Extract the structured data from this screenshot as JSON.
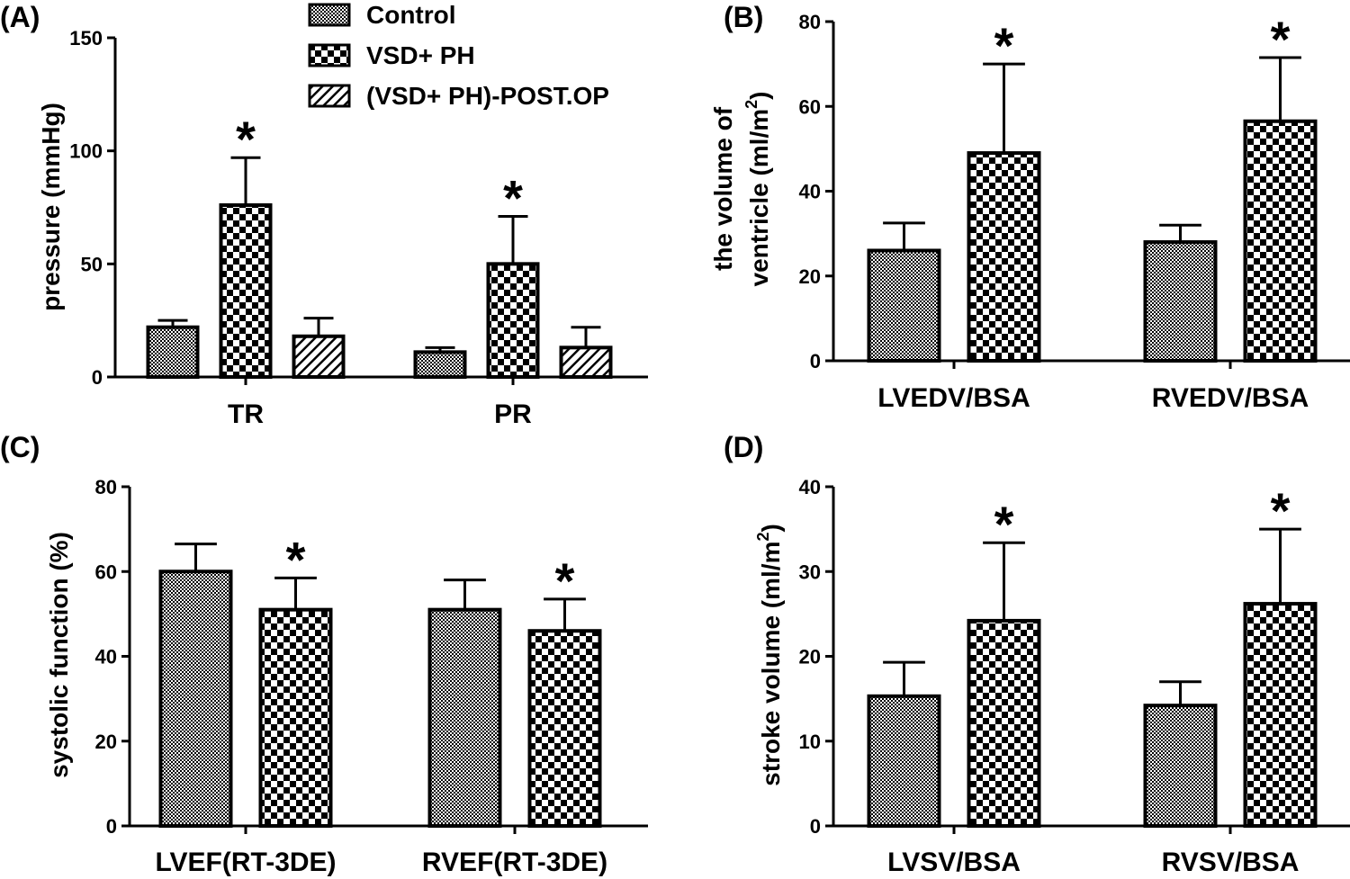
{
  "chart_data": [
    {
      "panel": "(A)",
      "type": "bar",
      "ylabel": "pressure (mmHg)",
      "ylim": [
        0,
        150
      ],
      "yticks": [
        0,
        50,
        100,
        150
      ],
      "categories": [
        "TR",
        "PR"
      ],
      "series": [
        {
          "name": "Control",
          "pattern": "control",
          "values": [
            22,
            11
          ],
          "errors": [
            3,
            2
          ]
        },
        {
          "name": "VSD+ PH",
          "pattern": "vsd",
          "values": [
            76,
            50
          ],
          "errors": [
            21,
            21
          ]
        },
        {
          "name": "(VSD+ PH)-POST.OP",
          "pattern": "post",
          "values": [
            18,
            13
          ],
          "errors": [
            8,
            9
          ]
        }
      ],
      "significance": [
        [
          null,
          null
        ],
        [
          "*",
          "*"
        ],
        [
          null,
          null
        ]
      ]
    },
    {
      "panel": "(B)",
      "type": "bar",
      "ylabel_lines": [
        "the volume of",
        "ventricle (ml/m",
        "2",
        ")"
      ],
      "ylim": [
        0,
        80
      ],
      "yticks": [
        0,
        20,
        40,
        60,
        80
      ],
      "categories": [
        "LVEDV/BSA",
        "RVEDV/BSA"
      ],
      "series": [
        {
          "name": "Control",
          "pattern": "control",
          "values": [
            26,
            28
          ],
          "errors": [
            6.5,
            4
          ]
        },
        {
          "name": "VSD+ PH",
          "pattern": "vsd",
          "values": [
            49,
            56.5
          ],
          "errors": [
            21,
            15
          ]
        }
      ],
      "significance": [
        [
          null,
          null
        ],
        [
          "*",
          "*"
        ]
      ]
    },
    {
      "panel": "(C)",
      "type": "bar",
      "ylabel": "systolic function (%)",
      "ylim": [
        0,
        80
      ],
      "yticks": [
        0,
        20,
        40,
        60,
        80
      ],
      "categories": [
        "LVEF(RT-3DE)",
        "RVEF(RT-3DE)"
      ],
      "series": [
        {
          "name": "Control",
          "pattern": "control",
          "values": [
            60,
            51
          ],
          "errors": [
            6.5,
            7
          ]
        },
        {
          "name": "VSD+ PH",
          "pattern": "vsd",
          "values": [
            51,
            46
          ],
          "errors": [
            7.5,
            7.5
          ]
        }
      ],
      "significance": [
        [
          null,
          null
        ],
        [
          "*",
          "*"
        ]
      ]
    },
    {
      "panel": "(D)",
      "type": "bar",
      "ylabel_lines": [
        "stroke volume (ml/m",
        "2",
        ")"
      ],
      "ylim": [
        0,
        40
      ],
      "yticks": [
        0,
        10,
        20,
        30,
        40
      ],
      "categories": [
        "LVSV/BSA",
        "RVSV/BSA"
      ],
      "series": [
        {
          "name": "Control",
          "pattern": "control",
          "values": [
            15.3,
            14.2
          ],
          "errors": [
            4,
            2.8
          ]
        },
        {
          "name": "VSD+ PH",
          "pattern": "vsd",
          "values": [
            24.2,
            26.2
          ],
          "errors": [
            9.2,
            8.8
          ]
        }
      ],
      "significance": [
        [
          null,
          null
        ],
        [
          "*",
          "*"
        ]
      ]
    }
  ],
  "legend": [
    {
      "label": "Control",
      "pattern": "control"
    },
    {
      "label": "VSD+ PH",
      "pattern": "vsd"
    },
    {
      "label": "(VSD+ PH)-POST.OP",
      "pattern": "post"
    }
  ]
}
